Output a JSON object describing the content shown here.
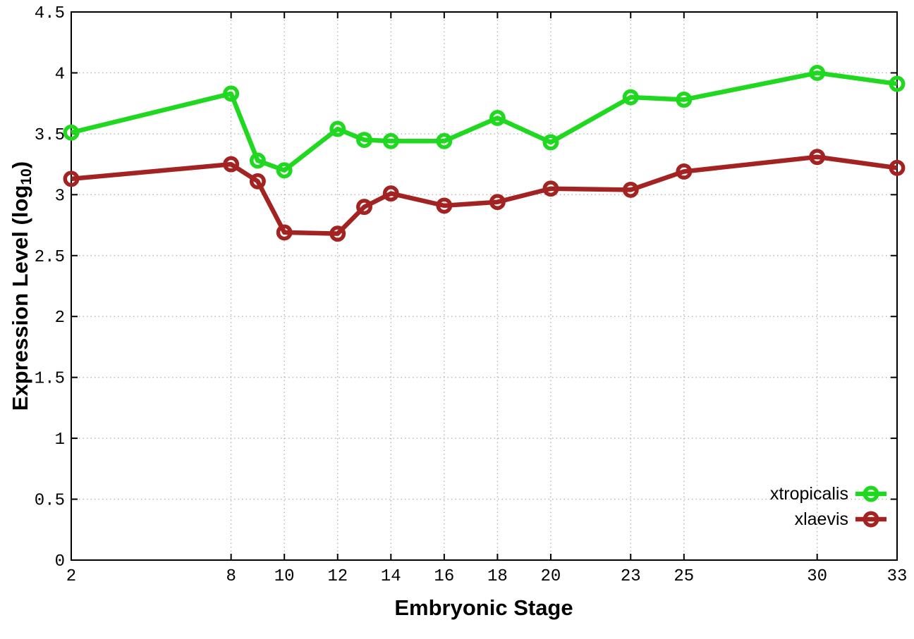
{
  "chart_data": {
    "type": "line",
    "title": "",
    "xlabel": "Embryonic Stage",
    "ylabel": "Expression Level (log10)",
    "ylabel_parts": {
      "main": "Expression Level (log",
      "sub": "10",
      "end": ")"
    },
    "x": [
      2,
      8,
      9,
      10,
      12,
      13,
      14,
      16,
      18,
      20,
      23,
      25,
      30,
      33
    ],
    "series": [
      {
        "name": "xtropicalis",
        "color": "#1fd81f",
        "values": [
          3.51,
          3.83,
          3.28,
          3.2,
          3.54,
          3.45,
          3.44,
          3.44,
          3.63,
          3.43,
          3.8,
          3.78,
          4.0,
          3.91
        ]
      },
      {
        "name": "xlaevis",
        "color": "#a32323",
        "values": [
          3.13,
          3.25,
          3.11,
          2.69,
          2.68,
          2.9,
          3.01,
          2.91,
          2.94,
          3.05,
          3.04,
          3.19,
          3.31,
          3.22
        ]
      }
    ],
    "xlim": [
      2,
      33
    ],
    "ylim": [
      0,
      4.5
    ],
    "xticks": {
      "values": [
        2,
        8,
        10,
        12,
        14,
        16,
        18,
        20,
        23,
        25,
        30,
        33
      ],
      "labels": [
        "2",
        "8",
        "10",
        "12",
        "14",
        "16",
        "18",
        "20",
        "23",
        "25",
        "30",
        "33"
      ]
    },
    "yticks": {
      "values": [
        0,
        0.5,
        1,
        1.5,
        2,
        2.5,
        3,
        3.5,
        4,
        4.5
      ],
      "labels": [
        "0",
        "0.5",
        "1",
        "1.5",
        "2",
        "2.5",
        "3",
        "3.5",
        "4",
        "4.5"
      ]
    },
    "grid": true,
    "grid_color": "#b5b5b5",
    "border_color": "#000000",
    "legend_position": "bottom-right-inside",
    "legend_entries": [
      "xtropicalis",
      "xlaevis"
    ]
  }
}
